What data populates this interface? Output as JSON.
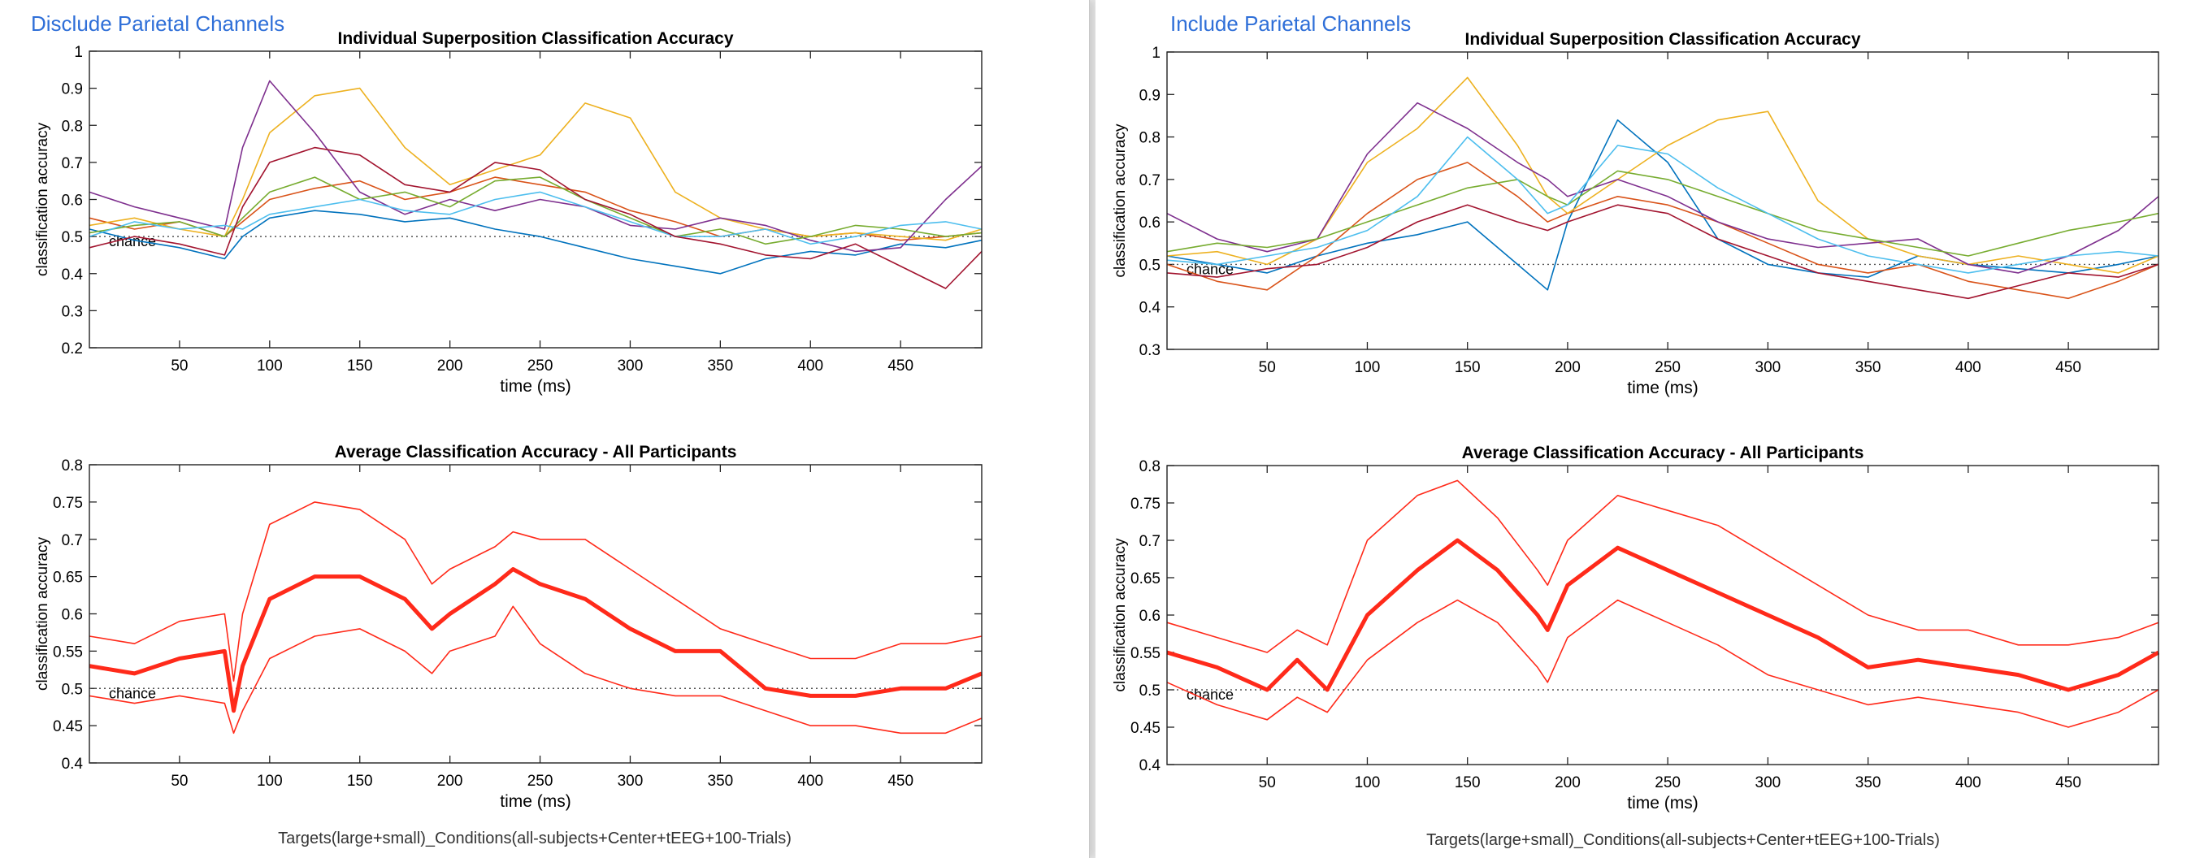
{
  "panels": [
    {
      "heading": "Disclude Parietal Channels",
      "footer": "Targets(large+small)_Conditions(all-subjects+Center+tEEG+100-Trials)"
    },
    {
      "heading": "Include Parietal Channels",
      "footer": "Targets(large+small)_Conditions(all-subjects+Center+tEEG+100-Trials)"
    }
  ],
  "series_colors": [
    "#0072BD",
    "#D95319",
    "#EDB120",
    "#7E2F8E",
    "#77AC30",
    "#4DBEEE",
    "#A2142F"
  ],
  "average_color": "#ff2a1a",
  "chart_data": [
    {
      "type": "line",
      "title": "Individual Superposition Classification Accuracy",
      "xlabel": "time (ms)",
      "ylabel": "classification accuracy",
      "xlim": [
        0,
        495
      ],
      "ylim": [
        0.2,
        1
      ],
      "xticks": [
        50,
        100,
        150,
        200,
        250,
        300,
        350,
        400,
        450
      ],
      "yticks": [
        0.2,
        0.3,
        0.4,
        0.5,
        0.6,
        0.7,
        0.8,
        0.9,
        1
      ],
      "chance_level": 0.5,
      "chance_label": "chance",
      "x": [
        0,
        25,
        50,
        75,
        85,
        100,
        125,
        150,
        175,
        200,
        225,
        250,
        275,
        300,
        325,
        350,
        375,
        400,
        425,
        450,
        475,
        495
      ],
      "series": [
        {
          "color": "#0072BD",
          "values": [
            0.52,
            0.49,
            0.47,
            0.44,
            0.5,
            0.55,
            0.57,
            0.56,
            0.54,
            0.55,
            0.52,
            0.5,
            0.47,
            0.44,
            0.42,
            0.4,
            0.44,
            0.46,
            0.45,
            0.48,
            0.47,
            0.49
          ]
        },
        {
          "color": "#D95319",
          "values": [
            0.55,
            0.52,
            0.54,
            0.5,
            0.54,
            0.6,
            0.63,
            0.65,
            0.6,
            0.62,
            0.66,
            0.64,
            0.62,
            0.57,
            0.54,
            0.5,
            0.52,
            0.5,
            0.51,
            0.49,
            0.5,
            0.51
          ]
        },
        {
          "color": "#EDB120",
          "values": [
            0.53,
            0.55,
            0.52,
            0.5,
            0.6,
            0.78,
            0.88,
            0.9,
            0.74,
            0.64,
            0.68,
            0.72,
            0.86,
            0.82,
            0.62,
            0.55,
            0.52,
            0.5,
            0.51,
            0.5,
            0.49,
            0.52
          ]
        },
        {
          "color": "#7E2F8E",
          "values": [
            0.62,
            0.58,
            0.55,
            0.52,
            0.74,
            0.92,
            0.78,
            0.62,
            0.56,
            0.6,
            0.57,
            0.6,
            0.58,
            0.53,
            0.52,
            0.55,
            0.53,
            0.49,
            0.46,
            0.47,
            0.6,
            0.69
          ]
        },
        {
          "color": "#77AC30",
          "values": [
            0.51,
            0.53,
            0.54,
            0.5,
            0.55,
            0.62,
            0.66,
            0.6,
            0.62,
            0.58,
            0.65,
            0.66,
            0.6,
            0.55,
            0.5,
            0.52,
            0.48,
            0.5,
            0.53,
            0.52,
            0.5,
            0.51
          ]
        },
        {
          "color": "#4DBEEE",
          "values": [
            0.5,
            0.54,
            0.52,
            0.53,
            0.52,
            0.56,
            0.58,
            0.6,
            0.57,
            0.56,
            0.6,
            0.62,
            0.58,
            0.54,
            0.5,
            0.5,
            0.52,
            0.48,
            0.5,
            0.53,
            0.54,
            0.52
          ]
        },
        {
          "color": "#A2142F",
          "values": [
            0.47,
            0.5,
            0.48,
            0.45,
            0.58,
            0.7,
            0.74,
            0.72,
            0.64,
            0.62,
            0.7,
            0.68,
            0.6,
            0.56,
            0.5,
            0.48,
            0.45,
            0.44,
            0.48,
            0.42,
            0.36,
            0.46
          ]
        }
      ]
    },
    {
      "type": "line",
      "title": "Average Classification Accuracy - All Participants",
      "xlabel": "time (ms)",
      "ylabel": "classification accuracy",
      "xlim": [
        0,
        495
      ],
      "ylim": [
        0.4,
        0.8
      ],
      "xticks": [
        50,
        100,
        150,
        200,
        250,
        300,
        350,
        400,
        450
      ],
      "yticks": [
        0.4,
        0.45,
        0.5,
        0.55,
        0.6,
        0.65,
        0.7,
        0.75,
        0.8
      ],
      "chance_level": 0.5,
      "chance_label": "chance",
      "x": [
        0,
        25,
        50,
        75,
        80,
        85,
        100,
        125,
        150,
        175,
        190,
        200,
        225,
        235,
        250,
        275,
        300,
        325,
        350,
        375,
        400,
        425,
        450,
        475,
        495
      ],
      "series": [
        {
          "kind": "mean",
          "values": [
            0.53,
            0.52,
            0.54,
            0.55,
            0.47,
            0.53,
            0.62,
            0.65,
            0.65,
            0.62,
            0.58,
            0.6,
            0.64,
            0.66,
            0.64,
            0.62,
            0.58,
            0.55,
            0.55,
            0.5,
            0.49,
            0.49,
            0.5,
            0.5,
            0.52
          ]
        },
        {
          "kind": "upper",
          "values": [
            0.57,
            0.56,
            0.59,
            0.6,
            0.51,
            0.6,
            0.72,
            0.75,
            0.74,
            0.7,
            0.64,
            0.66,
            0.69,
            0.71,
            0.7,
            0.7,
            0.66,
            0.62,
            0.58,
            0.56,
            0.54,
            0.54,
            0.56,
            0.56,
            0.57
          ]
        },
        {
          "kind": "lower",
          "values": [
            0.49,
            0.48,
            0.49,
            0.48,
            0.44,
            0.47,
            0.54,
            0.57,
            0.58,
            0.55,
            0.52,
            0.55,
            0.57,
            0.61,
            0.56,
            0.52,
            0.5,
            0.49,
            0.49,
            0.47,
            0.45,
            0.45,
            0.44,
            0.44,
            0.46
          ]
        }
      ]
    },
    {
      "type": "line",
      "title": "Individual Superposition Classification Accuracy",
      "xlabel": "time (ms)",
      "ylabel": "classification accuracy",
      "xlim": [
        0,
        495
      ],
      "ylim": [
        0.3,
        1
      ],
      "xticks": [
        50,
        100,
        150,
        200,
        250,
        300,
        350,
        400,
        450
      ],
      "yticks": [
        0.3,
        0.4,
        0.5,
        0.6,
        0.7,
        0.8,
        0.9,
        1
      ],
      "chance_level": 0.5,
      "chance_label": "chance",
      "x": [
        0,
        25,
        50,
        75,
        100,
        125,
        150,
        175,
        190,
        200,
        225,
        250,
        275,
        300,
        325,
        350,
        375,
        400,
        425,
        450,
        475,
        495
      ],
      "series": [
        {
          "color": "#0072BD",
          "values": [
            0.52,
            0.5,
            0.48,
            0.52,
            0.55,
            0.57,
            0.6,
            0.5,
            0.44,
            0.6,
            0.84,
            0.74,
            0.56,
            0.5,
            0.48,
            0.47,
            0.52,
            0.5,
            0.49,
            0.48,
            0.5,
            0.52
          ]
        },
        {
          "color": "#D95319",
          "values": [
            0.5,
            0.46,
            0.44,
            0.52,
            0.62,
            0.7,
            0.74,
            0.66,
            0.6,
            0.62,
            0.66,
            0.64,
            0.6,
            0.55,
            0.5,
            0.48,
            0.5,
            0.46,
            0.44,
            0.42,
            0.46,
            0.5
          ]
        },
        {
          "color": "#EDB120",
          "values": [
            0.52,
            0.53,
            0.5,
            0.56,
            0.74,
            0.82,
            0.94,
            0.78,
            0.66,
            0.62,
            0.7,
            0.78,
            0.84,
            0.86,
            0.65,
            0.56,
            0.52,
            0.5,
            0.52,
            0.5,
            0.48,
            0.52
          ]
        },
        {
          "color": "#7E2F8E",
          "values": [
            0.62,
            0.56,
            0.53,
            0.56,
            0.76,
            0.88,
            0.82,
            0.74,
            0.7,
            0.66,
            0.7,
            0.66,
            0.6,
            0.56,
            0.54,
            0.55,
            0.56,
            0.5,
            0.48,
            0.52,
            0.58,
            0.66
          ]
        },
        {
          "color": "#77AC30",
          "values": [
            0.53,
            0.55,
            0.54,
            0.56,
            0.6,
            0.64,
            0.68,
            0.7,
            0.66,
            0.64,
            0.72,
            0.7,
            0.66,
            0.62,
            0.58,
            0.56,
            0.54,
            0.52,
            0.55,
            0.58,
            0.6,
            0.62
          ]
        },
        {
          "color": "#4DBEEE",
          "values": [
            0.51,
            0.5,
            0.52,
            0.54,
            0.58,
            0.66,
            0.8,
            0.7,
            0.62,
            0.64,
            0.78,
            0.76,
            0.68,
            0.62,
            0.56,
            0.52,
            0.5,
            0.48,
            0.5,
            0.52,
            0.53,
            0.52
          ]
        },
        {
          "color": "#A2142F",
          "values": [
            0.48,
            0.47,
            0.49,
            0.5,
            0.54,
            0.6,
            0.64,
            0.6,
            0.58,
            0.6,
            0.64,
            0.62,
            0.56,
            0.52,
            0.48,
            0.46,
            0.44,
            0.42,
            0.45,
            0.48,
            0.47,
            0.5
          ]
        }
      ]
    },
    {
      "type": "line",
      "title": "Average Classification Accuracy - All Participants",
      "xlabel": "time (ms)",
      "ylabel": "classification accuracy",
      "xlim": [
        0,
        495
      ],
      "ylim": [
        0.4,
        0.8
      ],
      "xticks": [
        50,
        100,
        150,
        200,
        250,
        300,
        350,
        400,
        450
      ],
      "yticks": [
        0.4,
        0.45,
        0.5,
        0.55,
        0.6,
        0.65,
        0.7,
        0.75,
        0.8
      ],
      "chance_level": 0.5,
      "chance_label": "chance",
      "x": [
        0,
        25,
        50,
        65,
        80,
        100,
        125,
        145,
        165,
        185,
        190,
        200,
        225,
        250,
        275,
        300,
        325,
        350,
        375,
        400,
        425,
        450,
        475,
        495
      ],
      "series": [
        {
          "kind": "mean",
          "values": [
            0.55,
            0.53,
            0.5,
            0.54,
            0.5,
            0.6,
            0.66,
            0.7,
            0.66,
            0.6,
            0.58,
            0.64,
            0.69,
            0.66,
            0.63,
            0.6,
            0.57,
            0.53,
            0.54,
            0.53,
            0.52,
            0.5,
            0.52,
            0.55
          ]
        },
        {
          "kind": "upper",
          "values": [
            0.59,
            0.57,
            0.55,
            0.58,
            0.56,
            0.7,
            0.76,
            0.78,
            0.73,
            0.66,
            0.64,
            0.7,
            0.76,
            0.74,
            0.72,
            0.68,
            0.64,
            0.6,
            0.58,
            0.58,
            0.56,
            0.56,
            0.57,
            0.59
          ]
        },
        {
          "kind": "lower",
          "values": [
            0.51,
            0.48,
            0.46,
            0.49,
            0.47,
            0.54,
            0.59,
            0.62,
            0.59,
            0.53,
            0.51,
            0.57,
            0.62,
            0.59,
            0.56,
            0.52,
            0.5,
            0.48,
            0.49,
            0.48,
            0.47,
            0.45,
            0.47,
            0.5
          ]
        }
      ]
    }
  ]
}
